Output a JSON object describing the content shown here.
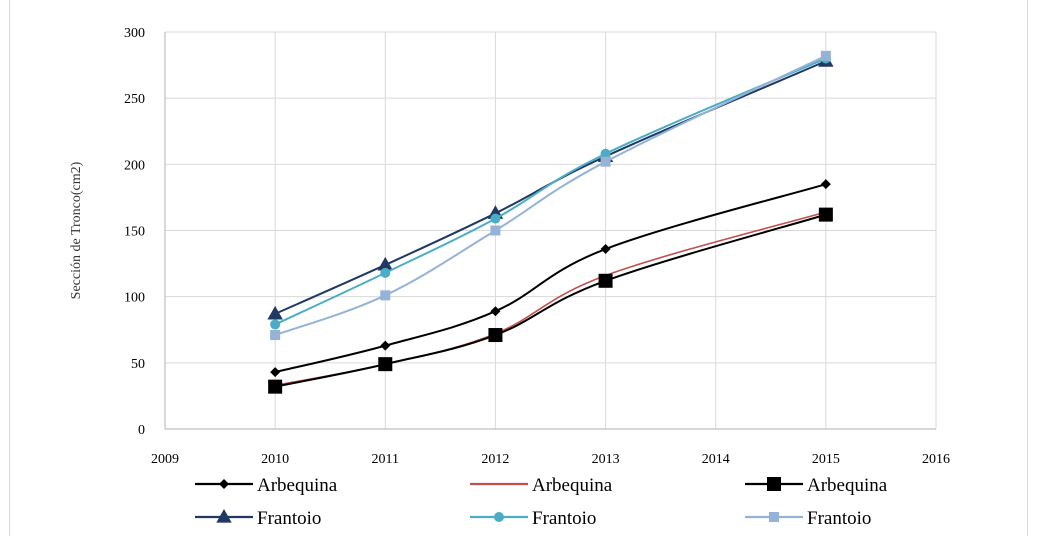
{
  "chart_data": {
    "type": "line",
    "title": "",
    "xlabel": "",
    "ylabel": "Sección de Tronco(cm2)",
    "xlim": [
      2009,
      2016
    ],
    "ylim": [
      0,
      300
    ],
    "x_ticks": [
      2009,
      2010,
      2011,
      2012,
      2013,
      2014,
      2015,
      2016
    ],
    "y_ticks": [
      0,
      50,
      100,
      150,
      200,
      250,
      300
    ],
    "grid": true,
    "legend_position": "bottom",
    "x": [
      2010,
      2011,
      2012,
      2013,
      2015
    ],
    "series": [
      {
        "name": "Arbequina",
        "color": "#000000",
        "marker": "diamond",
        "values": [
          43,
          63,
          89,
          136,
          185
        ]
      },
      {
        "name": "Arbequina",
        "color": "#c0504d",
        "marker": "none",
        "values": [
          33,
          49,
          72,
          116,
          164
        ]
      },
      {
        "name": "Arbequina",
        "color": "#000000",
        "marker": "square",
        "values": [
          32,
          49,
          71,
          112,
          162
        ]
      },
      {
        "name": "Frantoio",
        "color": "#1f3864",
        "marker": "triangle",
        "values": [
          87,
          124,
          163,
          206,
          278
        ]
      },
      {
        "name": "Frantoio",
        "color": "#4bacc6",
        "marker": "circle",
        "values": [
          79,
          118,
          159,
          208,
          280
        ]
      },
      {
        "name": "Frantoio",
        "color": "#95b3d7",
        "marker": "square",
        "values": [
          71,
          101,
          150,
          202,
          282
        ]
      }
    ]
  }
}
